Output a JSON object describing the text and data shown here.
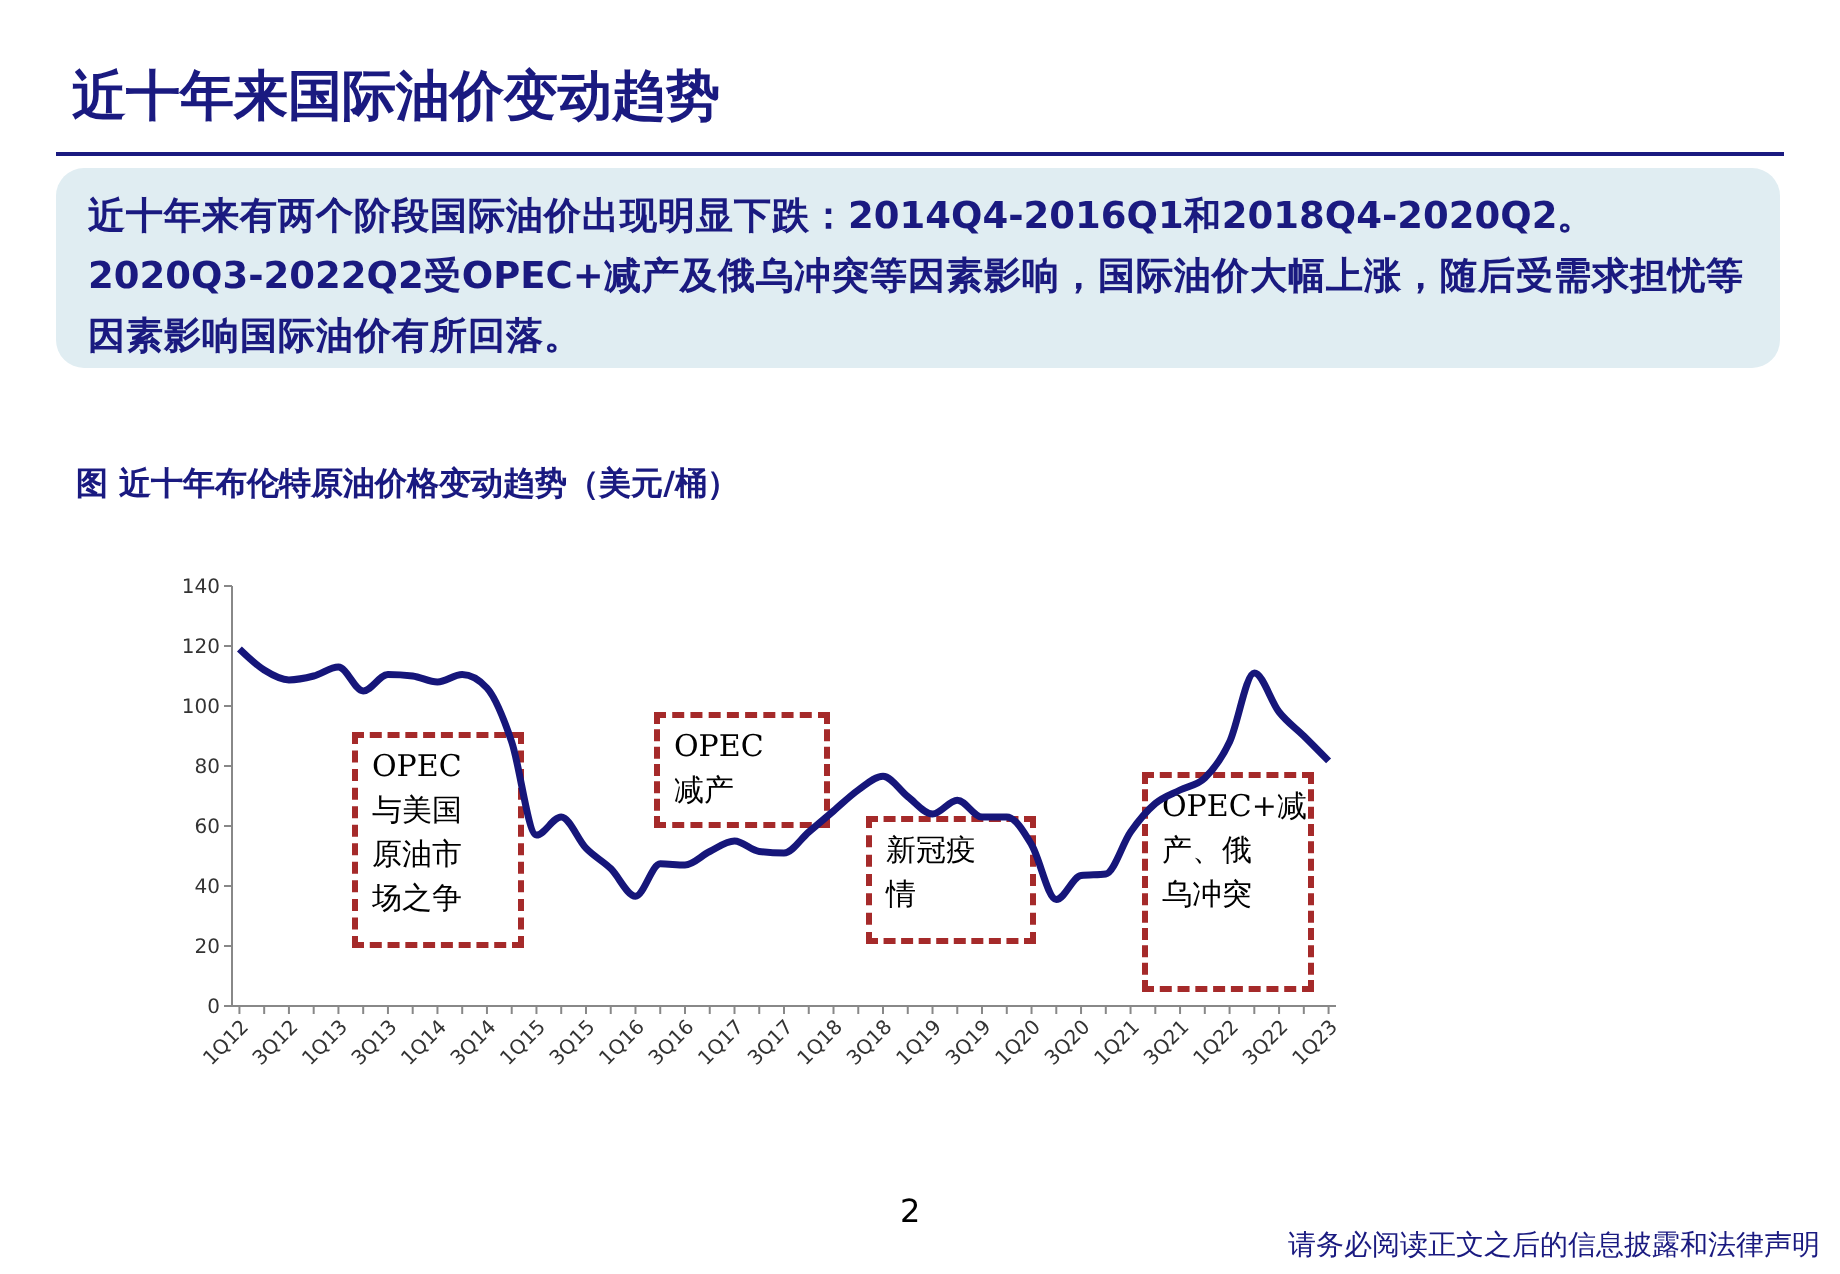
{
  "chart_data": {
    "type": "line",
    "title": "近十年来国际油价变动趋势",
    "subtitle": "近十年来有两个阶段国际油价出现明显下跌：2014Q4-2016Q1和2018Q4-2020Q2。2020Q3-2022Q2受OPEC+减产及俄乌冲突等因素影响，国际油价大幅上涨，随后受需求担忧等因素影响国际油价有所回落。",
    "categories": [
      "1Q12",
      null,
      "3Q12",
      null,
      "1Q13",
      null,
      "3Q13",
      null,
      "1Q14",
      null,
      "3Q14",
      null,
      "1Q15",
      null,
      "3Q15",
      null,
      "1Q16",
      null,
      "3Q16",
      null,
      "1Q17",
      null,
      "3Q17",
      null,
      "1Q18",
      null,
      "3Q18",
      null,
      "1Q19",
      null,
      "3Q19",
      null,
      "1Q20",
      null,
      "3Q20",
      null,
      "1Q21",
      null,
      "3Q21",
      null,
      "1Q22",
      null,
      "3Q22",
      null,
      "1Q23"
    ],
    "series": [
      {
        "color": "#16167a",
        "values": [
          119,
          112,
          108.7,
          110,
          113,
          105,
          110.5,
          110,
          108,
          110.5,
          106,
          88,
          57,
          63,
          52.6,
          45.8,
          36.6,
          47.4,
          47,
          51.5,
          55,
          51.5,
          51,
          58,
          65,
          72,
          76.6,
          69.8,
          64,
          68.6,
          63,
          63,
          53.8,
          35.5,
          43.5,
          44,
          58,
          67.5,
          72,
          76,
          88,
          111,
          98,
          90,
          81.7
        ]
      }
    ],
    "ylim": [
      0,
      140
    ],
    "yticks": [
      0,
      20,
      40,
      60,
      80,
      100,
      120,
      140
    ],
    "grid": false,
    "legend": false,
    "marker": "none",
    "line_style": "solid",
    "annotations": [
      "图 近十年布伦特原油价格变动趋势（美元/桶）",
      "OPEC与美国原油市场之争",
      "OPEC减产",
      "新冠疫情",
      "OPEC+减产、俄乌冲突",
      "2",
      "请务必阅读正文之后的信息披露和法律声明"
    ]
  }
}
